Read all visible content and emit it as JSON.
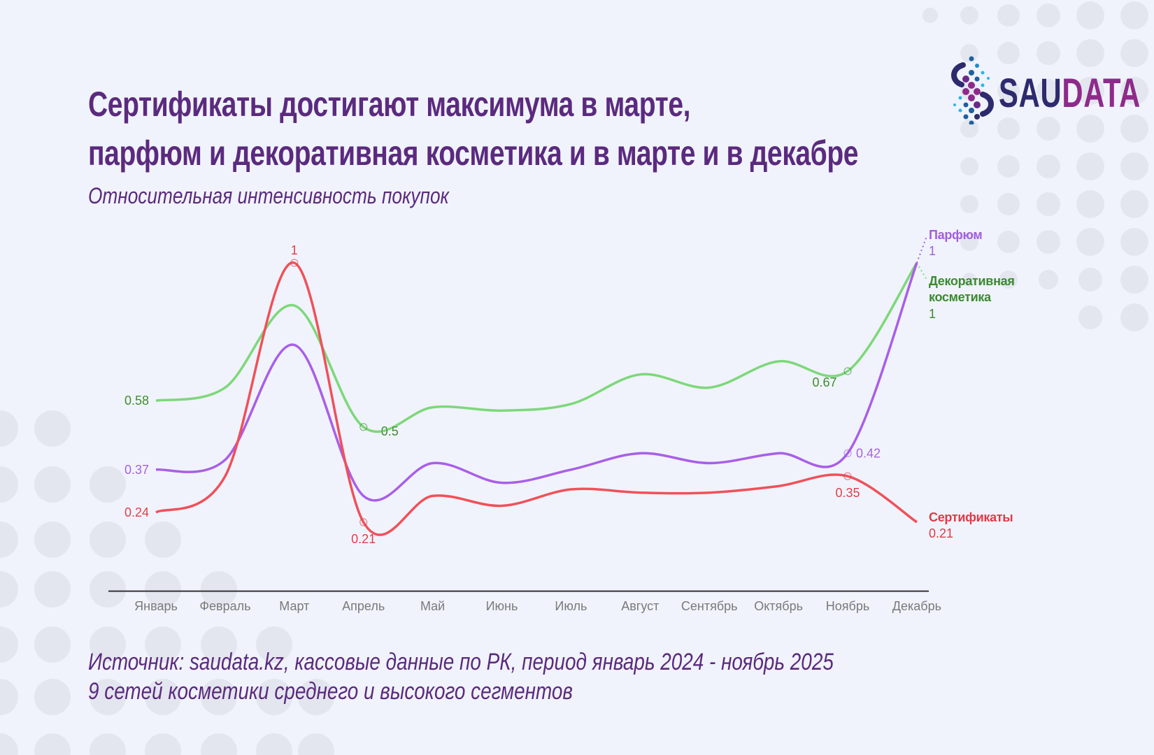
{
  "header": {
    "title_line1": "Сертификаты достигают максимума в марте,",
    "title_line2": "парфюм и декоративная косметика и в марте и в декабре",
    "subtitle": "Относительная интенсивность покупок"
  },
  "logo": {
    "text_part1": "SAU",
    "text_part2": "DATA"
  },
  "footer": {
    "line1": "Источник: saudata.kz, кассовые данные по РК, период январь 2024 - ноябрь 2025",
    "line2": "9 сетей косметики среднего и высокого сегментов"
  },
  "colors": {
    "title": "#5b2a7e",
    "background": "#f0f3fb",
    "dots": "#e3e6ef"
  },
  "chart_data": {
    "type": "line",
    "title": "Относительная интенсивность покупок",
    "xlabel": "",
    "ylabel": "",
    "ylim": [
      0,
      1
    ],
    "grid": false,
    "legend": "end-labels-right",
    "categories": [
      "Январь",
      "Февраль",
      "Март",
      "Апрель",
      "Май",
      "Июнь",
      "Июль",
      "Август",
      "Сентябрь",
      "Октябрь",
      "Ноябрь",
      "Декабрь"
    ],
    "series": [
      {
        "name": "Декоративная косметика",
        "name_lines": [
          "Декоративная",
          "косметика"
        ],
        "end_value": "1",
        "line_color": "#7dd87a",
        "text_color": "#3a8a2e",
        "values": [
          0.58,
          0.62,
          0.87,
          0.5,
          0.56,
          0.55,
          0.57,
          0.66,
          0.62,
          0.7,
          0.67,
          1
        ],
        "labels": [
          {
            "index": 0,
            "text": "0.58",
            "pos": "left"
          },
          {
            "index": 3,
            "text": "0.5",
            "pos": "right-below",
            "marker": true
          },
          {
            "index": 10,
            "text": "0.67",
            "pos": "left-below",
            "marker": true
          }
        ]
      },
      {
        "name": "Парфюм",
        "name_lines": [
          "Парфюм"
        ],
        "end_value": "1",
        "line_color": "#a95ee8",
        "text_color": "#a05ee0",
        "values": [
          0.37,
          0.4,
          0.75,
          0.29,
          0.39,
          0.33,
          0.37,
          0.42,
          0.39,
          0.42,
          0.42,
          1
        ],
        "labels": [
          {
            "index": 0,
            "text": "0.37",
            "pos": "left"
          },
          {
            "index": 10,
            "text": "0.42",
            "pos": "right",
            "marker": true
          }
        ]
      },
      {
        "name": "Сертификаты",
        "name_lines": [
          "Сертификаты"
        ],
        "end_value": "0.21",
        "line_color": "#f0505a",
        "text_color": "#e03a48",
        "values": [
          0.24,
          0.35,
          1,
          0.21,
          0.29,
          0.26,
          0.31,
          0.3,
          0.3,
          0.32,
          0.35,
          0.21
        ],
        "labels": [
          {
            "index": 0,
            "text": "0.24",
            "pos": "left"
          },
          {
            "index": 2,
            "text": "1",
            "pos": "above",
            "marker": true
          },
          {
            "index": 3,
            "text": "0.21",
            "pos": "below",
            "marker": true
          },
          {
            "index": 10,
            "text": "0.35",
            "pos": "below",
            "marker": true
          }
        ]
      }
    ]
  }
}
